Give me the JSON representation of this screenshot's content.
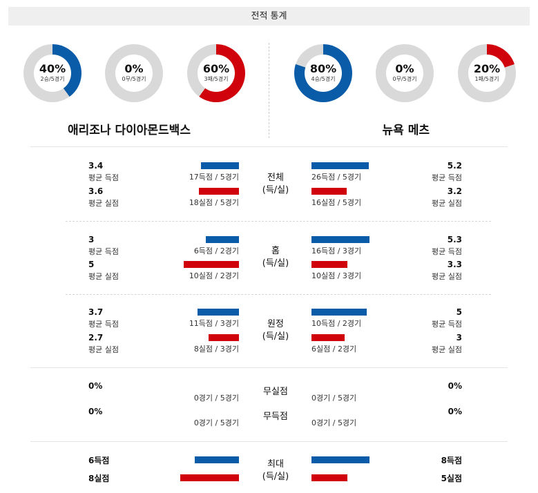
{
  "header": {
    "title": "전적 통계"
  },
  "donuts": {
    "away": [
      {
        "pct": "40%",
        "sub": "2승/5경기",
        "value": 40,
        "color": "#0a5ca8"
      },
      {
        "pct": "0%",
        "sub": "0무/5경기",
        "value": 0,
        "color": "#0a5ca8"
      },
      {
        "pct": "60%",
        "sub": "3패/5경기",
        "value": 60,
        "color": "#d0020b"
      }
    ],
    "home": [
      {
        "pct": "80%",
        "sub": "4승/5경기",
        "value": 80,
        "color": "#0a5ca8"
      },
      {
        "pct": "0%",
        "sub": "0무/5경기",
        "value": 0,
        "color": "#0a5ca8"
      },
      {
        "pct": "20%",
        "sub": "1패/5경기",
        "value": 20,
        "color": "#d0020b"
      }
    ],
    "track_color": "#d9d9d9"
  },
  "teams": {
    "away": "애리조나 다이아몬드백스",
    "home": "뉴욕 메츠"
  },
  "labels": {
    "avg_score": "평균 득점",
    "avg_allowed": "평균 실점"
  },
  "sections": {
    "total": {
      "title1": "전체",
      "title2": "(득/실)",
      "away": {
        "score": "3.4",
        "allowed": "3.6",
        "score_cap": "17득점 / 5경기",
        "allowed_cap": "18실점 / 5경기"
      },
      "home": {
        "score": "5.2",
        "allowed": "3.2",
        "score_cap": "26득점 / 5경기",
        "allowed_cap": "16실점 / 5경기"
      }
    },
    "home_games": {
      "title1": "홈",
      "title2": "(득/실)",
      "away": {
        "score": "3",
        "allowed": "5",
        "score_cap": "6득점 / 2경기",
        "allowed_cap": "10실점 / 2경기"
      },
      "home": {
        "score": "5.3",
        "allowed": "3.3",
        "score_cap": "16득점 / 3경기",
        "allowed_cap": "10실점 / 3경기"
      }
    },
    "away_games": {
      "title1": "원정",
      "title2": "(득/실)",
      "away": {
        "score": "3.7",
        "allowed": "2.7",
        "score_cap": "11득점 / 3경기",
        "allowed_cap": "8실점 / 3경기"
      },
      "home": {
        "score": "5",
        "allowed": "3",
        "score_cap": "10득점 / 2경기",
        "allowed_cap": "6실점 / 2경기"
      }
    },
    "shutout": {
      "title1": "무실점",
      "title2": "무득점",
      "away": {
        "v1": "0%",
        "v2": "0%",
        "cap1": "0경기 / 5경기",
        "cap2": "0경기 / 5경기"
      },
      "home": {
        "v1": "0%",
        "v2": "0%",
        "cap1": "0경기 / 5경기",
        "cap2": "0경기 / 5경기"
      }
    },
    "max": {
      "title1": "최대",
      "title2": "(득/실)",
      "away": {
        "score": "6득점",
        "allowed": "8실점"
      },
      "home": {
        "score": "8득점",
        "allowed": "5실점"
      }
    }
  }
}
